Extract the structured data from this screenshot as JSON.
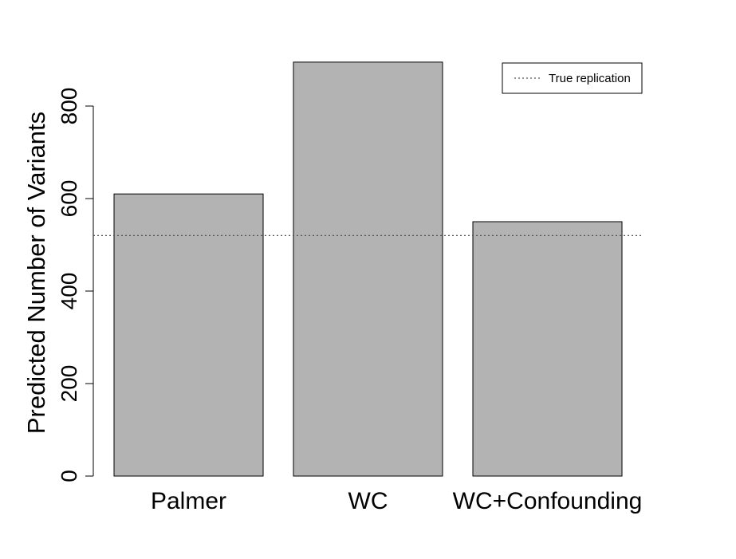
{
  "chart_data": {
    "type": "bar",
    "categories": [
      "Palmer",
      "WC",
      "WC+Confounding"
    ],
    "values": [
      610,
      895,
      550
    ],
    "title": "",
    "xlabel": "",
    "ylabel": "Predicted Number of Variants",
    "ylim": [
      0,
      900
    ],
    "yticks": [
      0,
      200,
      400,
      600,
      800
    ],
    "bar_color": "#b3b3b3",
    "reference_line": {
      "value": 520,
      "label": "True replication",
      "style": "dotted"
    },
    "legend_placement": "top-right",
    "grid": false
  }
}
